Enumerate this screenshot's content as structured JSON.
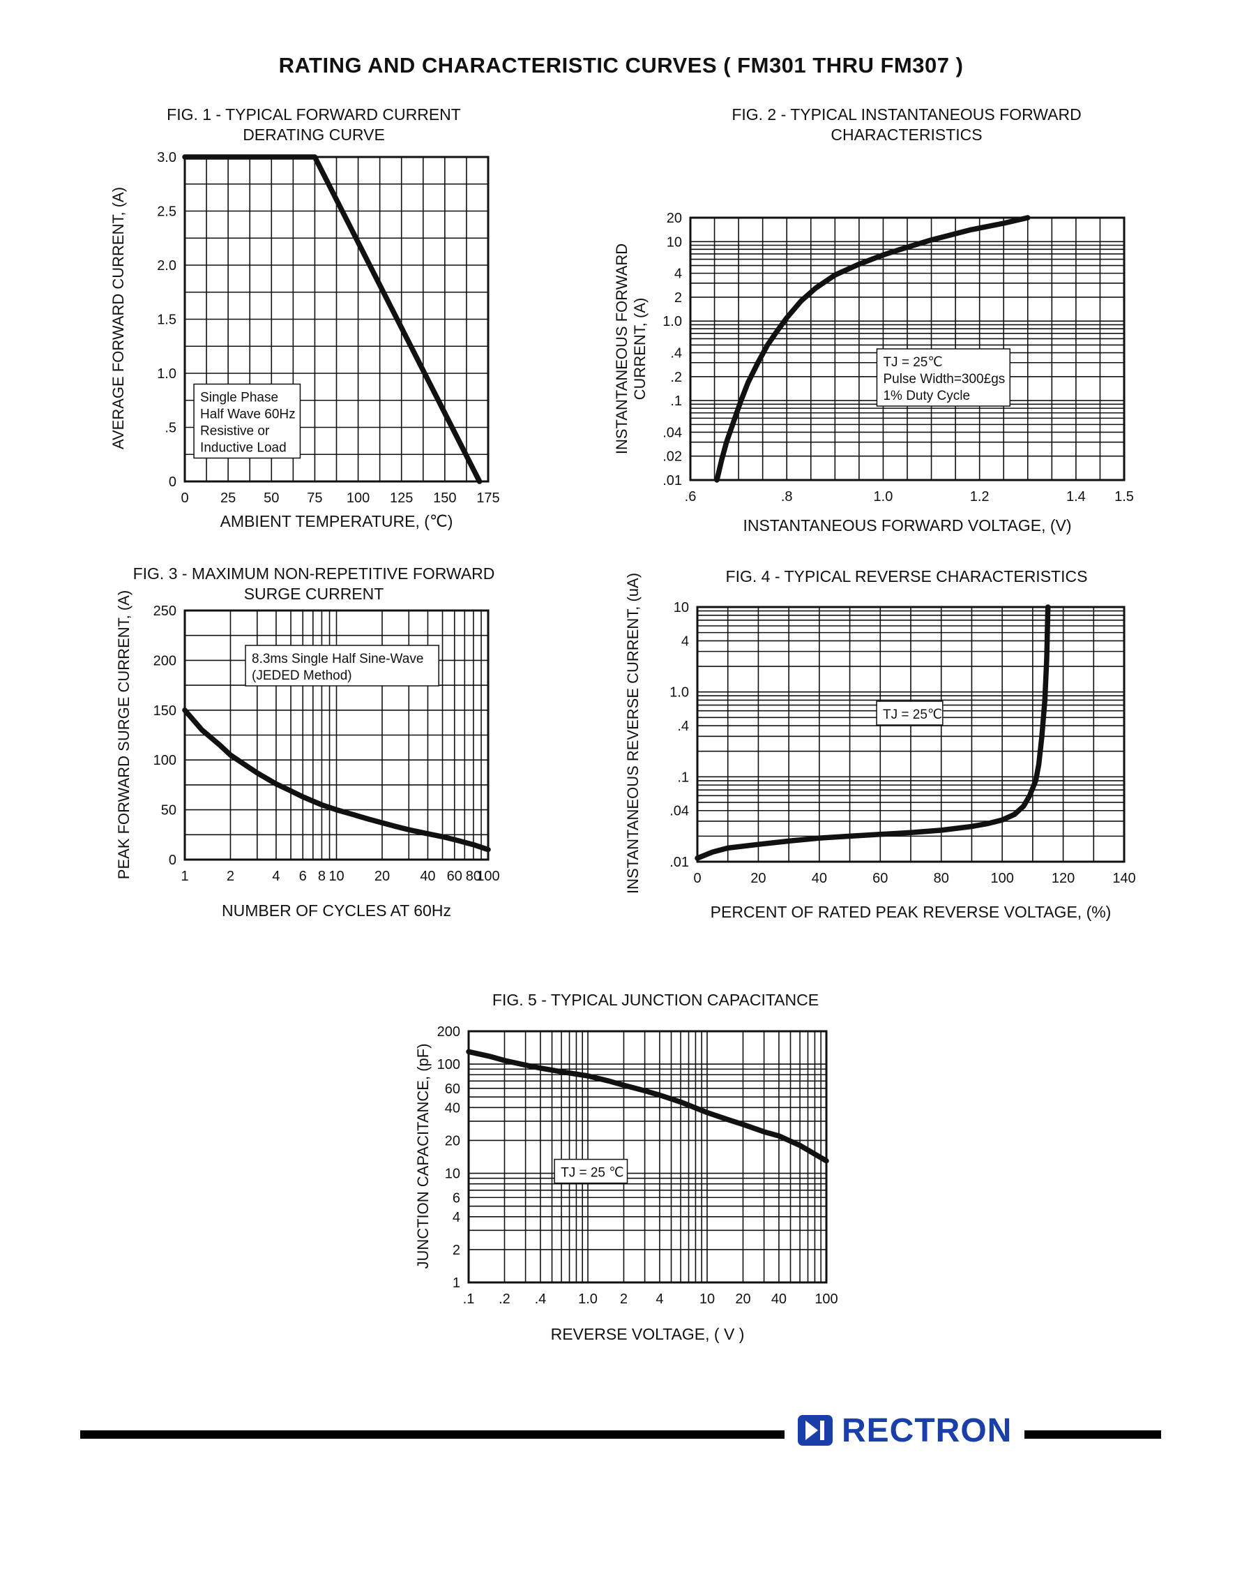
{
  "page": {
    "title": "RATING AND CHARACTERISTIC CURVES ( FM301 THRU FM307 )"
  },
  "footer": {
    "brand": "RECTRON"
  },
  "colors": {
    "ink": "#111111",
    "brand_blue": "#1b3fa8"
  },
  "chart_data": [
    {
      "id": "fig1",
      "type": "line",
      "title_lines": [
        "FIG. 1 - TYPICAL FORWARD CURRENT",
        "DERATING CURVE"
      ],
      "x_label": "AMBIENT TEMPERATURE, (℃)",
      "y_label_lines": [
        "AVERAGE FORWARD  CURRENT, (A)"
      ],
      "x_axis": {
        "scale": "linear",
        "min": 0,
        "max": 175,
        "grid_step": 12.5,
        "ticks": [
          {
            "v": 0,
            "label": "0"
          },
          {
            "v": 25,
            "label": "25"
          },
          {
            "v": 50,
            "label": "50"
          },
          {
            "v": 75,
            "label": "75"
          },
          {
            "v": 100,
            "label": "100"
          },
          {
            "v": 125,
            "label": "125"
          },
          {
            "v": 150,
            "label": "150"
          },
          {
            "v": 175,
            "label": "175"
          }
        ]
      },
      "y_axis": {
        "scale": "linear",
        "min": 0,
        "max": 3,
        "grid_step": 0.25,
        "ticks": [
          {
            "v": 3,
            "label": "3.0"
          },
          {
            "v": 2.5,
            "label": "2.5"
          },
          {
            "v": 2,
            "label": "2.0"
          },
          {
            "v": 1.5,
            "label": "1.5"
          },
          {
            "v": 1,
            "label": "1.0"
          },
          {
            "v": 0.5,
            "label": ".5"
          },
          {
            "v": 0,
            "label": "0"
          }
        ]
      },
      "series": [
        {
          "name": "derating-curve",
          "points": [
            [
              0,
              3.0
            ],
            [
              75,
              3.0
            ],
            [
              170,
              0
            ]
          ]
        }
      ],
      "annotation": {
        "lines": [
          "Single Phase",
          "Half Wave 60Hz",
          "Resistive or",
          "Inductive Load"
        ],
        "fx": 0.03,
        "fy": 0.7
      }
    },
    {
      "id": "fig2",
      "type": "line",
      "title_lines": [
        "FIG. 2 - TYPICAL INSTANTANEOUS FORWARD",
        "CHARACTERISTICS"
      ],
      "x_label": "INSTANTANEOUS FORWARD VOLTAGE, (V)",
      "y_label_lines": [
        "INSTANTANEOUS FORWARD",
        "CURRENT, (A)"
      ],
      "x_axis": {
        "scale": "linear",
        "min": 0.6,
        "max": 1.5,
        "grid_step": 0.05,
        "ticks": [
          {
            "v": 0.6,
            "label": ".6"
          },
          {
            "v": 0.8,
            "label": ".8"
          },
          {
            "v": 1.0,
            "label": "1.0"
          },
          {
            "v": 1.2,
            "label": "1.2"
          },
          {
            "v": 1.4,
            "label": "1.4"
          },
          {
            "v": 1.5,
            "label": "1.5"
          }
        ]
      },
      "y_axis": {
        "scale": "log",
        "min": 0.01,
        "max": 20,
        "ticks": [
          {
            "v": 20,
            "label": "20"
          },
          {
            "v": 10,
            "label": "10"
          },
          {
            "v": 4,
            "label": "4"
          },
          {
            "v": 2,
            "label": "2"
          },
          {
            "v": 1,
            "label": "1.0"
          },
          {
            "v": 0.4,
            "label": ".4"
          },
          {
            "v": 0.2,
            "label": ".2"
          },
          {
            "v": 0.1,
            "label": ".1"
          },
          {
            "v": 0.04,
            "label": ".04"
          },
          {
            "v": 0.02,
            "label": ".02"
          },
          {
            "v": 0.01,
            "label": ".01"
          }
        ]
      },
      "series": [
        {
          "name": "forward-characteristic",
          "points": [
            [
              0.655,
              0.01
            ],
            [
              0.665,
              0.018
            ],
            [
              0.675,
              0.03
            ],
            [
              0.69,
              0.055
            ],
            [
              0.705,
              0.1
            ],
            [
              0.72,
              0.17
            ],
            [
              0.74,
              0.3
            ],
            [
              0.76,
              0.5
            ],
            [
              0.78,
              0.75
            ],
            [
              0.8,
              1.1
            ],
            [
              0.83,
              1.8
            ],
            [
              0.86,
              2.6
            ],
            [
              0.9,
              3.8
            ],
            [
              0.95,
              5.2
            ],
            [
              1.0,
              6.8
            ],
            [
              1.05,
              8.5
            ],
            [
              1.1,
              10.5
            ],
            [
              1.18,
              14
            ],
            [
              1.25,
              17
            ],
            [
              1.3,
              20
            ]
          ]
        }
      ],
      "annotation": {
        "lines": [
          "TJ = 25℃",
          "Pulse Width=300£gs",
          "1% Duty Cycle"
        ],
        "fx": 0.43,
        "fy": 0.5
      }
    },
    {
      "id": "fig3",
      "type": "line",
      "title_lines": [
        "FIG. 3 - MAXIMUM NON-REPETITIVE FORWARD",
        "SURGE CURRENT"
      ],
      "x_label": "NUMBER OF CYCLES AT 60Hz",
      "y_label_lines": [
        "PEAK FORWARD SURGE CURRENT, (A)"
      ],
      "x_axis": {
        "scale": "log",
        "min": 1,
        "max": 100,
        "ticks": [
          {
            "v": 1,
            "label": "1"
          },
          {
            "v": 2,
            "label": "2"
          },
          {
            "v": 4,
            "label": "4"
          },
          {
            "v": 6,
            "label": "6"
          },
          {
            "v": 8,
            "label": "8"
          },
          {
            "v": 10,
            "label": "10"
          },
          {
            "v": 20,
            "label": "20"
          },
          {
            "v": 40,
            "label": "40"
          },
          {
            "v": 60,
            "label": "60"
          },
          {
            "v": 80,
            "label": "80"
          },
          {
            "v": 100,
            "label": "100"
          }
        ]
      },
      "y_axis": {
        "scale": "linear",
        "min": 0,
        "max": 250,
        "grid_step": 25,
        "ticks": [
          {
            "v": 0,
            "label": "0"
          },
          {
            "v": 50,
            "label": "50"
          },
          {
            "v": 100,
            "label": "100"
          },
          {
            "v": 150,
            "label": "150"
          },
          {
            "v": 200,
            "label": "200"
          },
          {
            "v": 250,
            "label": "250"
          }
        ]
      },
      "series": [
        {
          "name": "surge-current",
          "points": [
            [
              1,
              150
            ],
            [
              1.3,
              130
            ],
            [
              1.7,
              115
            ],
            [
              2,
              105
            ],
            [
              2.5,
              95
            ],
            [
              3,
              87
            ],
            [
              4,
              76
            ],
            [
              5,
              69
            ],
            [
              6,
              63
            ],
            [
              8,
              55
            ],
            [
              10,
              50
            ],
            [
              13,
              45
            ],
            [
              16,
              41
            ],
            [
              20,
              37
            ],
            [
              25,
              33
            ],
            [
              30,
              30
            ],
            [
              40,
              26
            ],
            [
              50,
              23
            ],
            [
              60,
              20
            ],
            [
              80,
              15
            ],
            [
              100,
              10
            ]
          ]
        }
      ],
      "annotation": {
        "lines": [
          "8.3ms Single Half Sine-Wave",
          "(JEDED Method)"
        ],
        "fx": 0.2,
        "fy": 0.14
      }
    },
    {
      "id": "fig4",
      "type": "line",
      "title_lines": [
        "FIG. 4 - TYPICAL REVERSE CHARACTERISTICS"
      ],
      "x_label": "PERCENT OF RATED PEAK REVERSE VOLTAGE, (%)",
      "y_label_lines": [
        "INSTANTANEOUS REVERSE CURRENT, (uA)"
      ],
      "x_axis": {
        "scale": "linear",
        "min": 0,
        "max": 140,
        "grid_step": 10,
        "ticks": [
          {
            "v": 0,
            "label": "0"
          },
          {
            "v": 20,
            "label": "20"
          },
          {
            "v": 40,
            "label": "40"
          },
          {
            "v": 60,
            "label": "60"
          },
          {
            "v": 80,
            "label": "80"
          },
          {
            "v": 100,
            "label": "100"
          },
          {
            "v": 120,
            "label": "120"
          },
          {
            "v": 140,
            "label": "140"
          }
        ]
      },
      "y_axis": {
        "scale": "log",
        "min": 0.01,
        "max": 10,
        "ticks": [
          {
            "v": 10,
            "label": "10"
          },
          {
            "v": 4,
            "label": "4"
          },
          {
            "v": 1,
            "label": "1.0"
          },
          {
            "v": 0.4,
            "label": ".4"
          },
          {
            "v": 0.1,
            "label": ".1"
          },
          {
            "v": 0.04,
            "label": ".04"
          },
          {
            "v": 0.01,
            "label": ".01"
          }
        ]
      },
      "series": [
        {
          "name": "reverse-characteristic",
          "points": [
            [
              0,
              0.011
            ],
            [
              5,
              0.013
            ],
            [
              10,
              0.0145
            ],
            [
              20,
              0.016
            ],
            [
              30,
              0.0175
            ],
            [
              40,
              0.019
            ],
            [
              50,
              0.02
            ],
            [
              60,
              0.021
            ],
            [
              70,
              0.022
            ],
            [
              80,
              0.0235
            ],
            [
              90,
              0.026
            ],
            [
              95,
              0.028
            ],
            [
              100,
              0.031
            ],
            [
              104,
              0.036
            ],
            [
              107,
              0.045
            ],
            [
              109,
              0.06
            ],
            [
              111,
              0.09
            ],
            [
              112,
              0.14
            ],
            [
              113,
              0.3
            ],
            [
              114,
              0.8
            ],
            [
              114.6,
              2.5
            ],
            [
              115,
              10
            ]
          ]
        }
      ],
      "annotation": {
        "lines": [
          "TJ = 25℃"
        ],
        "fx": 0.42,
        "fy": 0.37
      }
    },
    {
      "id": "fig5",
      "type": "line",
      "title_lines": [
        "FIG. 5 - TYPICAL JUNCTION CAPACITANCE"
      ],
      "x_label": "REVERSE VOLTAGE, ( V )",
      "y_label_lines": [
        "JUNCTION CAPACITANCE, (pF)"
      ],
      "x_axis": {
        "scale": "log",
        "min": 0.1,
        "max": 100,
        "ticks": [
          {
            "v": 0.1,
            "label": ".1"
          },
          {
            "v": 0.2,
            "label": ".2"
          },
          {
            "v": 0.4,
            "label": ".4"
          },
          {
            "v": 1,
            "label": "1.0"
          },
          {
            "v": 2,
            "label": "2"
          },
          {
            "v": 4,
            "label": "4"
          },
          {
            "v": 10,
            "label": "10"
          },
          {
            "v": 20,
            "label": "20"
          },
          {
            "v": 40,
            "label": "40"
          },
          {
            "v": 100,
            "label": "100"
          }
        ]
      },
      "y_axis": {
        "scale": "log",
        "min": 1,
        "max": 200,
        "ticks": [
          {
            "v": 200,
            "label": "200"
          },
          {
            "v": 100,
            "label": "100"
          },
          {
            "v": 60,
            "label": "60"
          },
          {
            "v": 40,
            "label": "40"
          },
          {
            "v": 20,
            "label": "20"
          },
          {
            "v": 10,
            "label": "10"
          },
          {
            "v": 6,
            "label": "6"
          },
          {
            "v": 4,
            "label": "4"
          },
          {
            "v": 2,
            "label": "2"
          },
          {
            "v": 1,
            "label": "1"
          }
        ]
      },
      "series": [
        {
          "name": "junction-capacitance",
          "points": [
            [
              0.1,
              130
            ],
            [
              0.15,
              118
            ],
            [
              0.2,
              108
            ],
            [
              0.3,
              98
            ],
            [
              0.4,
              92
            ],
            [
              0.6,
              85
            ],
            [
              1.0,
              78
            ],
            [
              1.5,
              70
            ],
            [
              2,
              64
            ],
            [
              3,
              57
            ],
            [
              4,
              52
            ],
            [
              6,
              45
            ],
            [
              10,
              36
            ],
            [
              15,
              31
            ],
            [
              20,
              28
            ],
            [
              30,
              24
            ],
            [
              40,
              22
            ],
            [
              60,
              18
            ],
            [
              100,
              13
            ]
          ]
        }
      ],
      "annotation": {
        "lines": [
          "TJ = 25 ℃"
        ],
        "fx": 0.24,
        "fy": 0.51
      }
    }
  ]
}
